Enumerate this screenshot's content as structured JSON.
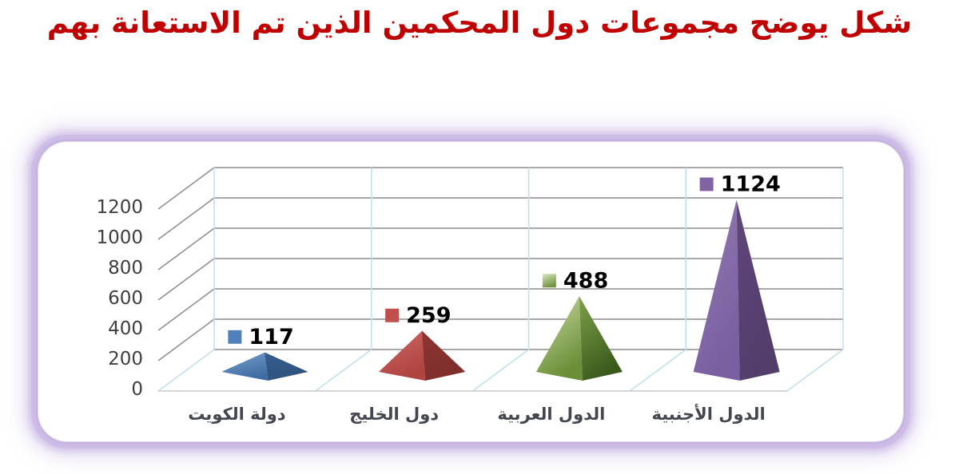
{
  "title": {
    "text": "شكل يوضح مجموعات دول المحكمين الذين تم الاستعانة بهم",
    "color": "#C00000"
  },
  "chart_data": {
    "type": "bar",
    "bar_shape": "pyramid-3d",
    "title": "",
    "xlabel": "",
    "ylabel": "",
    "categories": [
      "دولة الكويت",
      "دول الخليج",
      "الدول العربية",
      "الدول الأجنبية"
    ],
    "values": [
      117,
      259,
      488,
      1124
    ],
    "data_labels": [
      "117",
      "259",
      "488",
      "1124"
    ],
    "ylim": [
      0,
      1200
    ],
    "yticks": [
      0,
      200,
      400,
      600,
      800,
      1000,
      1200
    ],
    "grid": true,
    "legend": "none",
    "view": "3d-perspective",
    "series": [
      {
        "name": "دولة الكويت",
        "value": 117,
        "color": "#4F81BD",
        "left_top": "#7AA0CC",
        "left_bottom": "#3F6DA3",
        "right_top": "#35608F",
        "right_bottom": "#2E527D",
        "swatch_top": "#4F81BD",
        "swatch_bottom": "#4F81BD"
      },
      {
        "name": "دول الخليج",
        "value": 259,
        "color": "#C0504D",
        "left_top": "#CD6965",
        "left_bottom": "#AF4340",
        "right_top": "#8F3532",
        "right_bottom": "#7E2E2B",
        "swatch_top": "#C0504D",
        "swatch_bottom": "#C0504D"
      },
      {
        "name": "الدول العربية",
        "value": 488,
        "color": "#9BBB59",
        "left_top": "#CBDBA6",
        "left_bottom": "#6B8F38",
        "right_top": "#7FA04B",
        "right_bottom": "#3A5A1C",
        "swatch_top": "#D9E5C1",
        "swatch_bottom": "#70953E"
      },
      {
        "name": "الدول الأجنبية",
        "value": 1124,
        "color": "#8064A2",
        "left_top": "#927BB1",
        "left_bottom": "#7A5FA0",
        "right_top": "#5F477A",
        "right_bottom": "#533D6B",
        "swatch_top": "#8064A2",
        "swatch_bottom": "#8064A2"
      }
    ],
    "colors": {
      "gridline": "#8C8C8C",
      "wall_separator": "#BDE0EC",
      "floor_edge": "#C9C9C9",
      "tick_text": "#3F3F3F",
      "category_text": "#43464F",
      "value_text": "#000000"
    }
  },
  "frame": {
    "glow_color": "#CDBCE7",
    "background": "#FFFFFF"
  }
}
